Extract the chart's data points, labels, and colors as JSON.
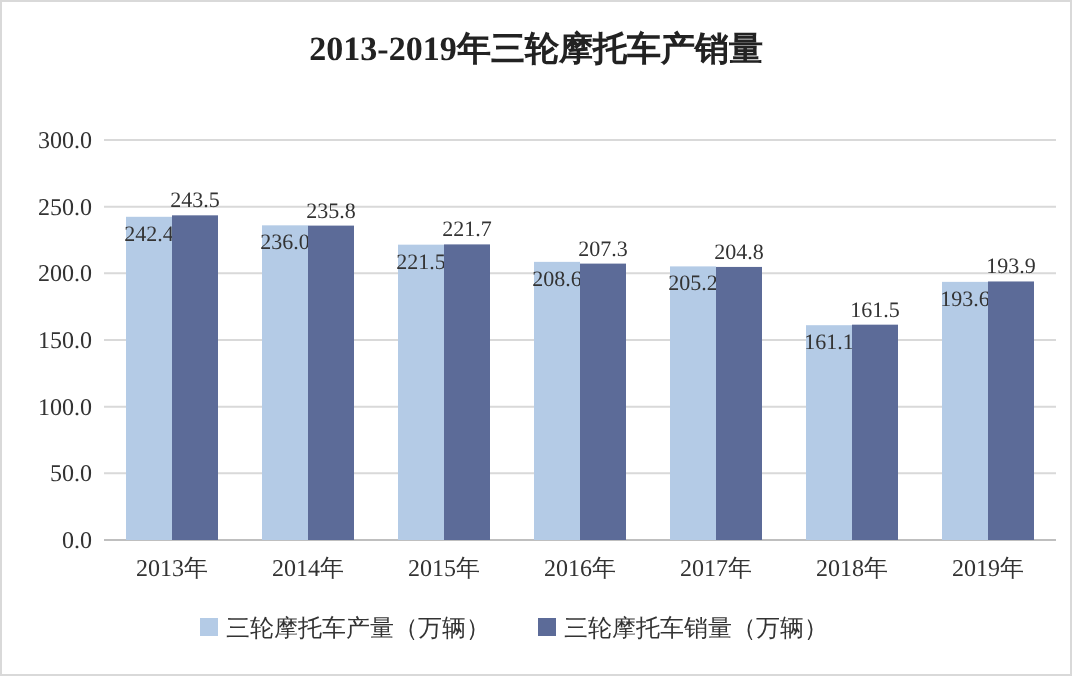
{
  "chart_data": {
    "type": "bar",
    "title": "2013-2019年三轮摩托车产销量",
    "categories": [
      "2013年",
      "2014年",
      "2015年",
      "2016年",
      "2017年",
      "2018年",
      "2019年"
    ],
    "series": [
      {
        "name": "三轮摩托车产量（万辆）",
        "color": "#b4cbe6",
        "values": [
          242.4,
          236.0,
          221.5,
          208.6,
          205.2,
          161.1,
          193.6
        ],
        "value_labels": [
          "242.4",
          "236.0",
          "221.5",
          "208.6",
          "205.2",
          "161.1",
          "193.6"
        ]
      },
      {
        "name": "三轮摩托车销量（万辆）",
        "color": "#5c6b98",
        "values": [
          243.5,
          235.8,
          221.7,
          207.3,
          204.8,
          161.5,
          193.9
        ],
        "value_labels": [
          "243.5",
          "235.8",
          "221.7",
          "207.3",
          "204.8",
          "161.5",
          "193.9"
        ]
      }
    ],
    "ylim": [
      0,
      300
    ],
    "yticks": [
      {
        "value": 0,
        "label": "0.0"
      },
      {
        "value": 50,
        "label": "50.0"
      },
      {
        "value": 100,
        "label": "100.0"
      },
      {
        "value": 150,
        "label": "150.0"
      },
      {
        "value": 200,
        "label": "200.0"
      },
      {
        "value": 250,
        "label": "250.0"
      },
      {
        "value": 300,
        "label": "300.0"
      }
    ],
    "grid": "y",
    "legend": "bottom"
  }
}
